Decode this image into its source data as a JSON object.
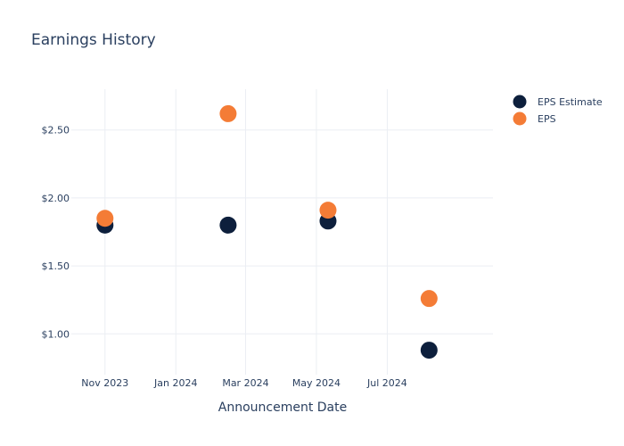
{
  "chart_data": {
    "type": "scatter",
    "title": "Earnings History",
    "xlabel": "Announcement Date",
    "ylabel": "",
    "x_ticks": [
      {
        "date": "2023-11-01",
        "label": "Nov 2023"
      },
      {
        "date": "2024-01-01",
        "label": "Jan 2024"
      },
      {
        "date": "2024-03-01",
        "label": "Mar 2024"
      },
      {
        "date": "2024-05-01",
        "label": "May 2024"
      },
      {
        "date": "2024-07-01",
        "label": "Jul 2024"
      }
    ],
    "y_ticks": [
      {
        "value": 1.0,
        "label": "$1.00"
      },
      {
        "value": 1.5,
        "label": "$1.50"
      },
      {
        "value": 2.0,
        "label": "$2.00"
      },
      {
        "value": 2.5,
        "label": "$2.50"
      }
    ],
    "xlim": [
      "2023-10-03",
      "2024-09-30"
    ],
    "ylim": [
      0.7,
      2.8
    ],
    "grid": true,
    "legend_position": "top-right",
    "series": [
      {
        "name": "EPS Estimate",
        "color": "#0d1f3c",
        "points": [
          {
            "x": "2023-11-01",
            "y": 1.8
          },
          {
            "x": "2024-02-15",
            "y": 1.8
          },
          {
            "x": "2024-05-11",
            "y": 1.83
          },
          {
            "x": "2024-08-06",
            "y": 0.88
          }
        ]
      },
      {
        "name": "EPS",
        "color": "#f47c36",
        "points": [
          {
            "x": "2023-11-01",
            "y": 1.85
          },
          {
            "x": "2024-02-15",
            "y": 2.62
          },
          {
            "x": "2024-05-11",
            "y": 1.91
          },
          {
            "x": "2024-08-06",
            "y": 1.26
          }
        ]
      }
    ]
  }
}
